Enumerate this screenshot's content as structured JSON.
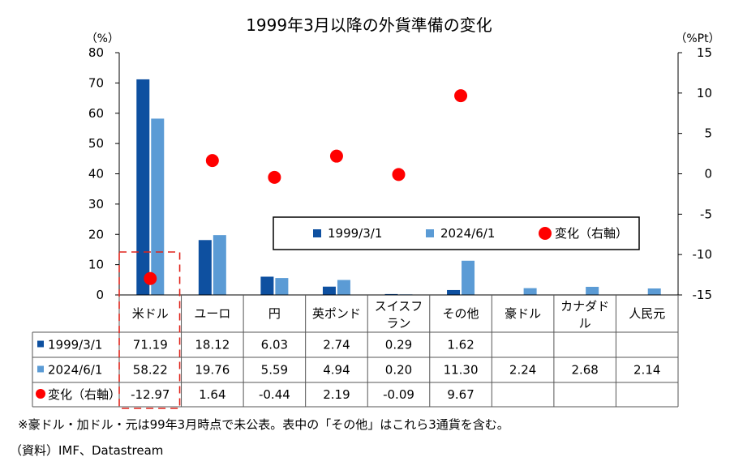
{
  "chart_data": {
    "type": "bar",
    "title": "1999年3月以降の外貨準備の変化",
    "left_axis_unit": "（%）",
    "right_axis_unit": "（%Pt）",
    "ylim": [
      0,
      80
    ],
    "y_ticks": [
      "0",
      "10",
      "20",
      "30",
      "40",
      "50",
      "60",
      "70",
      "80"
    ],
    "y2lim": [
      -15,
      15
    ],
    "y2_ticks": [
      "-15",
      "-10",
      "-5",
      "0",
      "5",
      "10",
      "15"
    ],
    "categories": [
      [
        "米ドル"
      ],
      [
        "ユーロ"
      ],
      [
        "円"
      ],
      [
        "英ポンド"
      ],
      [
        "スイスフ",
        "ラン"
      ],
      [
        "その他"
      ],
      [
        "豪ドル"
      ],
      [
        "カナダド",
        "ル"
      ],
      [
        "人民元"
      ]
    ],
    "series": [
      {
        "name": "1999/3/1",
        "type": "bar",
        "axis": "left",
        "color": "#0e50a0",
        "values": [
          71.19,
          18.12,
          6.03,
          2.74,
          0.29,
          1.62,
          null,
          null,
          null
        ],
        "labels": [
          "71.19",
          "18.12",
          "6.03",
          "2.74",
          "0.29",
          "1.62",
          "",
          "",
          ""
        ]
      },
      {
        "name": "2024/6/1",
        "type": "bar",
        "axis": "left",
        "color": "#5b9bd5",
        "values": [
          58.22,
          19.76,
          5.59,
          4.94,
          0.2,
          11.3,
          2.24,
          2.68,
          2.14
        ],
        "labels": [
          "58.22",
          "19.76",
          "5.59",
          "4.94",
          "0.20",
          "11.30",
          "2.24",
          "2.68",
          "2.14"
        ]
      },
      {
        "name": "変化（右軸）",
        "type": "scatter",
        "axis": "right",
        "color": "#ff0000",
        "values": [
          -12.97,
          1.64,
          -0.44,
          2.19,
          -0.09,
          9.67,
          null,
          null,
          null
        ],
        "labels": [
          "-12.97",
          "1.64",
          "-0.44",
          "2.19",
          "-0.09",
          "9.67",
          "",
          "",
          ""
        ]
      }
    ],
    "highlight_category": "米ドル",
    "legend_position": "middle-right"
  },
  "footnotes": {
    "note": "※豪ドル・加ドル・元は99年3月時点で未公表。表中の「その他」はこれら3通貨を含む。",
    "source": "（資料）IMF、Datastream"
  }
}
